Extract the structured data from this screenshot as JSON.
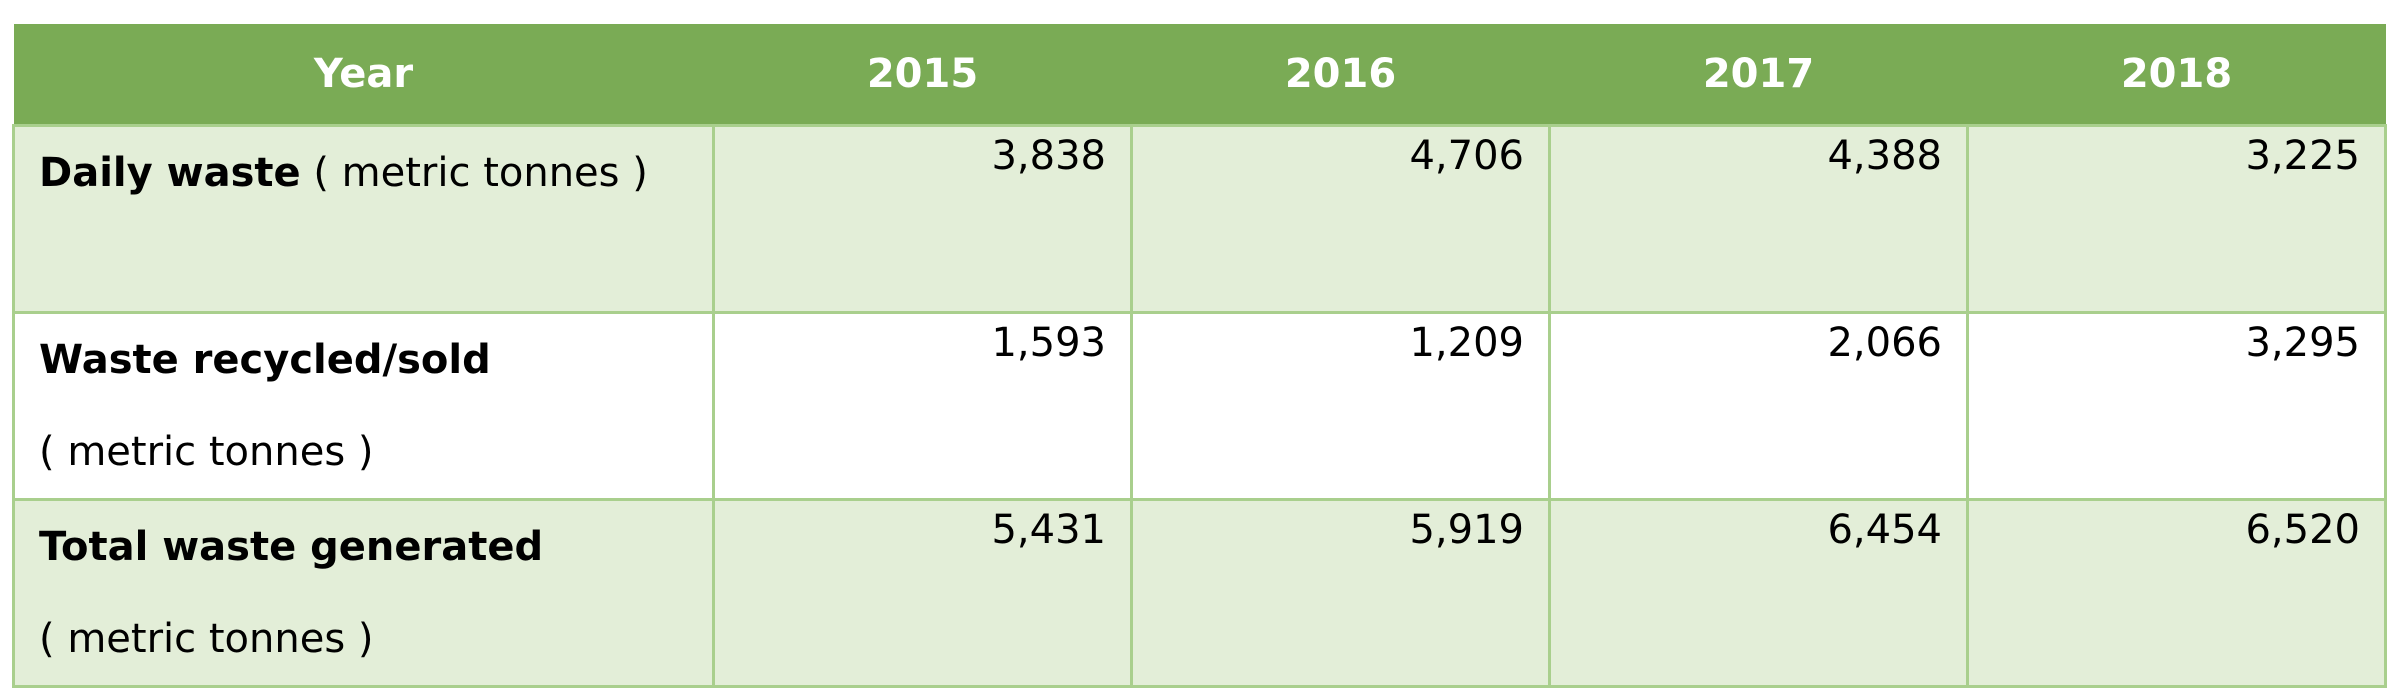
{
  "table": {
    "header": [
      "Year",
      "2015",
      "2016",
      "2017",
      "2018"
    ],
    "rows": [
      {
        "label_bold": "Daily waste",
        "label_unit": "( metric tonnes )",
        "values": [
          "3,838",
          "4,706",
          "4,388",
          "3,225"
        ]
      },
      {
        "label_bold": "Waste recycled/sold",
        "label_unit": "( metric tonnes )",
        "values": [
          "1,593",
          "1,209",
          "2,066",
          "3,295"
        ]
      },
      {
        "label_bold": "Total waste generated",
        "label_unit": "( metric tonnes )",
        "values": [
          "5,431",
          "5,919",
          "6,454",
          "6,520"
        ]
      }
    ]
  },
  "colors": {
    "header_background": "#7aab55",
    "header_text": "#ffffff",
    "shaded_row": "#e3eed8",
    "plain_row": "#ffffff",
    "grid_lines": "#a9cf8d"
  }
}
